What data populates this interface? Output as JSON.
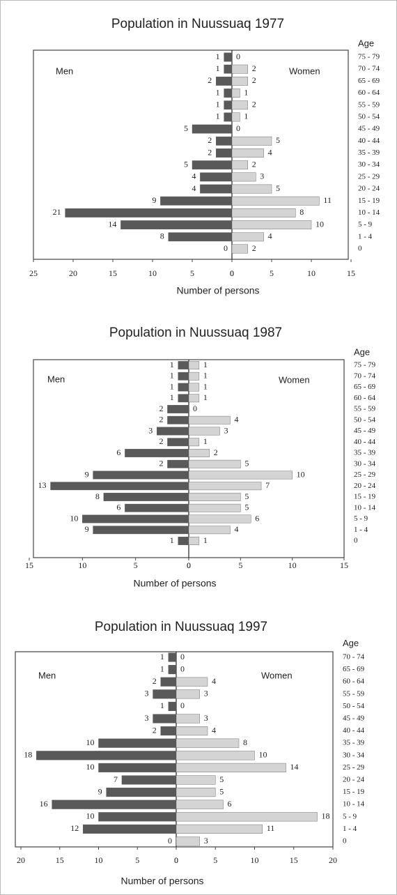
{
  "chart_data": [
    {
      "type": "pyramid",
      "title": "Population in Nuussuaq 1977",
      "category_label": "Age",
      "x_label": "Number of persons",
      "categories": [
        "75 - 79",
        "70 - 74",
        "65 - 69",
        "60 - 64",
        "55 - 59",
        "50 - 54",
        "45 - 49",
        "40 - 44",
        "35 - 39",
        "30 - 34",
        "25 - 29",
        "20 - 24",
        "15 - 19",
        "10 - 14",
        "5 - 9",
        "1 - 4",
        "0"
      ],
      "series": [
        {
          "name": "Men",
          "color": "#595959",
          "side": "left",
          "xlim": [
            0,
            25
          ],
          "xticks": [
            25,
            20,
            15,
            10,
            5,
            0
          ],
          "values": [
            1,
            1,
            2,
            1,
            1,
            1,
            5,
            2,
            2,
            5,
            4,
            4,
            9,
            21,
            14,
            8,
            0
          ]
        },
        {
          "name": "Women",
          "color": "#d4d4d4",
          "side": "right",
          "xlim": [
            0,
            15
          ],
          "xticks": [
            0,
            5,
            10,
            15
          ],
          "values": [
            0,
            2,
            2,
            1,
            2,
            1,
            0,
            5,
            4,
            2,
            3,
            5,
            11,
            8,
            10,
            4,
            2
          ]
        }
      ]
    },
    {
      "type": "pyramid",
      "title": "Population in Nuussuaq 1987",
      "category_label": "Age",
      "x_label": "Number of persons",
      "categories": [
        "75 - 79",
        "70 - 74",
        "65 - 69",
        "60 - 64",
        "55 - 59",
        "50 - 54",
        "45 - 49",
        "40 - 44",
        "35 - 39",
        "30 - 34",
        "25 - 29",
        "20 - 24",
        "15 - 19",
        "10 - 14",
        "5 - 9",
        "1 - 4",
        "0"
      ],
      "series": [
        {
          "name": "Men",
          "color": "#595959",
          "side": "left",
          "xlim": [
            0,
            15
          ],
          "xticks": [
            15,
            10,
            5,
            0
          ],
          "values": [
            1,
            1,
            1,
            1,
            2,
            2,
            3,
            2,
            6,
            2,
            9,
            13,
            8,
            6,
            10,
            9,
            1
          ]
        },
        {
          "name": "Women",
          "color": "#d4d4d4",
          "side": "right",
          "xlim": [
            0,
            15
          ],
          "xticks": [
            0,
            5,
            10,
            15
          ],
          "values": [
            1,
            1,
            1,
            1,
            0,
            4,
            3,
            1,
            2,
            5,
            10,
            7,
            5,
            5,
            6,
            4,
            1
          ]
        }
      ]
    },
    {
      "type": "pyramid",
      "title": "Population in Nuussuaq 1997",
      "category_label": "Age",
      "x_label": "Number of persons",
      "categories": [
        "70 - 74",
        "65 - 69",
        "60 - 64",
        "55 - 59",
        "50 - 54",
        "45 - 49",
        "40 - 44",
        "35 - 39",
        "30 - 34",
        "25 - 29",
        "20 - 24",
        "15 - 19",
        "10 - 14",
        "5 - 9",
        "1 - 4",
        "0"
      ],
      "series": [
        {
          "name": "Men",
          "color": "#595959",
          "side": "left",
          "xlim": [
            0,
            20
          ],
          "xticks": [
            20,
            15,
            10,
            5,
            0
          ],
          "values": [
            1,
            1,
            2,
            3,
            1,
            3,
            2,
            10,
            18,
            10,
            7,
            9,
            16,
            10,
            12,
            0
          ]
        },
        {
          "name": "Women",
          "color": "#d4d4d4",
          "side": "right",
          "xlim": [
            0,
            20
          ],
          "xticks": [
            0,
            5,
            10,
            15,
            20
          ],
          "values": [
            0,
            0,
            4,
            3,
            0,
            3,
            4,
            8,
            10,
            14,
            5,
            5,
            6,
            18,
            11,
            3
          ]
        }
      ]
    }
  ]
}
